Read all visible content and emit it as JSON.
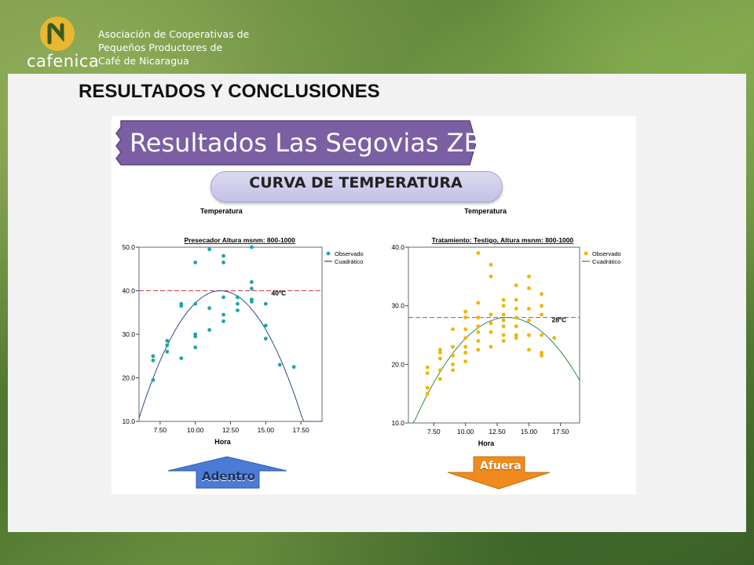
{
  "header": {
    "logo_word": "cafenica",
    "org_line1": "Asociación de Cooperativas de",
    "org_line2": "Pequeños Productores de",
    "org_line3": "Café de Nicaragua",
    "section_title": "RESULTADOS  Y  CONCLUSIONES"
  },
  "slide": {
    "banner": "Resultados Las Segovias ZB",
    "subtitle": "CURVA DE TEMPERATURA",
    "arrow_left": "Adentro",
    "arrow_right": "Afuera"
  },
  "colors": {
    "banner": "#7b5fa4",
    "observed_left": "#1aa6a8",
    "curve_left": "#2c4a8a",
    "observed_right": "#f0b400",
    "curve_right": "#2e8a4a",
    "ref_line": "#d04040",
    "arrow_left": "#4b7bd6",
    "arrow_right": "#f08a1c"
  },
  "chart_data": [
    {
      "type": "scatter",
      "title": "Presecador  Altura msnm: 800-1000",
      "header": "Temperatura",
      "xlabel": "Hora",
      "ylabel": "",
      "xlim": [
        6,
        19
      ],
      "ylim": [
        10,
        50
      ],
      "xticks": [
        "7.50",
        "10.00",
        "12.50",
        "15.00",
        "17.50"
      ],
      "yticks": [
        "10.0",
        "20.0",
        "30.0",
        "40.0",
        "50.0"
      ],
      "legend": [
        "Observado",
        "Cuadrático"
      ],
      "legend_position": "top-right",
      "reference_line": {
        "y": 40,
        "label": "40ºC"
      },
      "quadratic": {
        "a": -0.87,
        "vertex_x": 11.8,
        "vertex_y": 40
      },
      "points": [
        [
          7,
          19.5
        ],
        [
          7,
          24
        ],
        [
          7,
          25
        ],
        [
          8,
          26
        ],
        [
          8,
          27.5
        ],
        [
          8,
          28.5
        ],
        [
          9,
          24.5
        ],
        [
          9,
          36.5
        ],
        [
          9,
          37
        ],
        [
          10,
          27
        ],
        [
          10,
          29.5
        ],
        [
          10,
          30
        ],
        [
          10,
          37
        ],
        [
          10,
          46.5
        ],
        [
          11,
          31
        ],
        [
          11,
          36
        ],
        [
          11,
          49.5
        ],
        [
          12,
          33
        ],
        [
          12,
          34.5
        ],
        [
          12,
          38.5
        ],
        [
          12,
          46.5
        ],
        [
          12,
          48
        ],
        [
          13,
          35.5
        ],
        [
          13,
          37
        ],
        [
          13,
          38.5
        ],
        [
          14,
          37.5
        ],
        [
          14,
          38
        ],
        [
          14,
          40.5
        ],
        [
          14,
          42
        ],
        [
          14,
          50
        ],
        [
          15,
          29
        ],
        [
          15,
          32
        ],
        [
          15,
          37
        ],
        [
          16,
          23
        ],
        [
          17,
          22.5
        ]
      ]
    },
    {
      "type": "scatter",
      "title": "Tratamiento: Testigo,  Altura msnm: 800-1000",
      "header": "Temperatura",
      "xlabel": "Hora",
      "ylabel": "",
      "xlim": [
        5.5,
        19
      ],
      "ylim": [
        10,
        40
      ],
      "xticks": [
        "7.50",
        "10.00",
        "12.50",
        "15.00",
        "17.50"
      ],
      "yticks": [
        "10.0",
        "20.0",
        "30.0",
        "40.0"
      ],
      "legend": [
        "Observado",
        "Cuadrático"
      ],
      "legend_position": "top-right",
      "reference_line": {
        "y": 28,
        "label": "28ºC"
      },
      "quadratic": {
        "a": -0.33,
        "vertex_x": 13.3,
        "vertex_y": 28
      },
      "points": [
        [
          7,
          15
        ],
        [
          7,
          16
        ],
        [
          7,
          18.5
        ],
        [
          7,
          19.5
        ],
        [
          8,
          17.5
        ],
        [
          8,
          19
        ],
        [
          8,
          21
        ],
        [
          8,
          22
        ],
        [
          8,
          22.5
        ],
        [
          9,
          19
        ],
        [
          9,
          20
        ],
        [
          9,
          21.5
        ],
        [
          9,
          23
        ],
        [
          9,
          26
        ],
        [
          10,
          20.5
        ],
        [
          10,
          22
        ],
        [
          10,
          23
        ],
        [
          10,
          24.5
        ],
        [
          10,
          26
        ],
        [
          10,
          28
        ],
        [
          10,
          29
        ],
        [
          11,
          22.5
        ],
        [
          11,
          24
        ],
        [
          11,
          25.5
        ],
        [
          11,
          26.5
        ],
        [
          11,
          28
        ],
        [
          11,
          30.5
        ],
        [
          11,
          39
        ],
        [
          12,
          23
        ],
        [
          12,
          25.5
        ],
        [
          12,
          27
        ],
        [
          12,
          28.5
        ],
        [
          12,
          35
        ],
        [
          12,
          37
        ],
        [
          13,
          24
        ],
        [
          13,
          25
        ],
        [
          13,
          26.5
        ],
        [
          13,
          27.5
        ],
        [
          13,
          28.5
        ],
        [
          13,
          30
        ],
        [
          13,
          31
        ],
        [
          14,
          24.5
        ],
        [
          14,
          25
        ],
        [
          14,
          26.5
        ],
        [
          14,
          28
        ],
        [
          14,
          29.5
        ],
        [
          14,
          31
        ],
        [
          14,
          33.5
        ],
        [
          15,
          22.5
        ],
        [
          15,
          25
        ],
        [
          15,
          27.5
        ],
        [
          15,
          29.5
        ],
        [
          15,
          33
        ],
        [
          15,
          35
        ],
        [
          16,
          21.5
        ],
        [
          16,
          22
        ],
        [
          16,
          25
        ],
        [
          16,
          28.5
        ],
        [
          16,
          30
        ],
        [
          16,
          32
        ],
        [
          17,
          24.5
        ]
      ]
    }
  ]
}
